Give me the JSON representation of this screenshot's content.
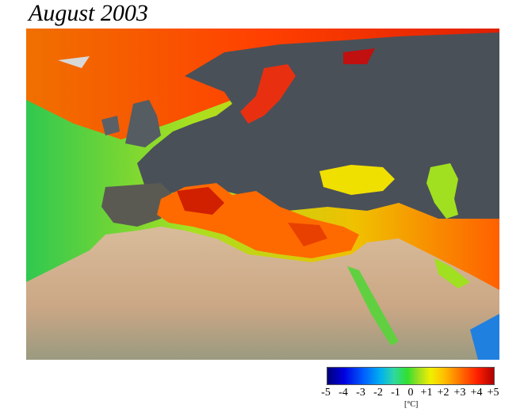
{
  "title": "August 2003",
  "colorbar": {
    "tick_labels": [
      "-5",
      "-4",
      "-3",
      "-2",
      "-1",
      "0",
      "+1",
      "+2",
      "+3",
      "+4",
      "+5"
    ],
    "unit": "[°C]"
  },
  "colors": {
    "sea_hot": "#e02000",
    "sea_warm": "#ff7a00",
    "sea_mild": "#f0e000",
    "sea_neutral": "#40d040",
    "land_europe": "#4a5058",
    "land_desert": "#d6b896"
  }
}
